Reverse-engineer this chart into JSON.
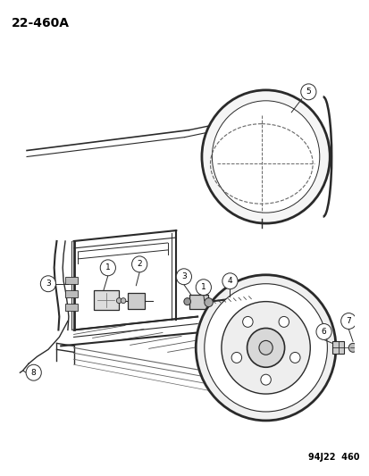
{
  "title": "22-460A",
  "footer": "94J22  460",
  "bg_color": "#ffffff",
  "title_fontsize": 10,
  "footer_fontsize": 7,
  "line_color": "#2a2a2a",
  "gray": "#666666",
  "light_gray": "#aaaaaa"
}
